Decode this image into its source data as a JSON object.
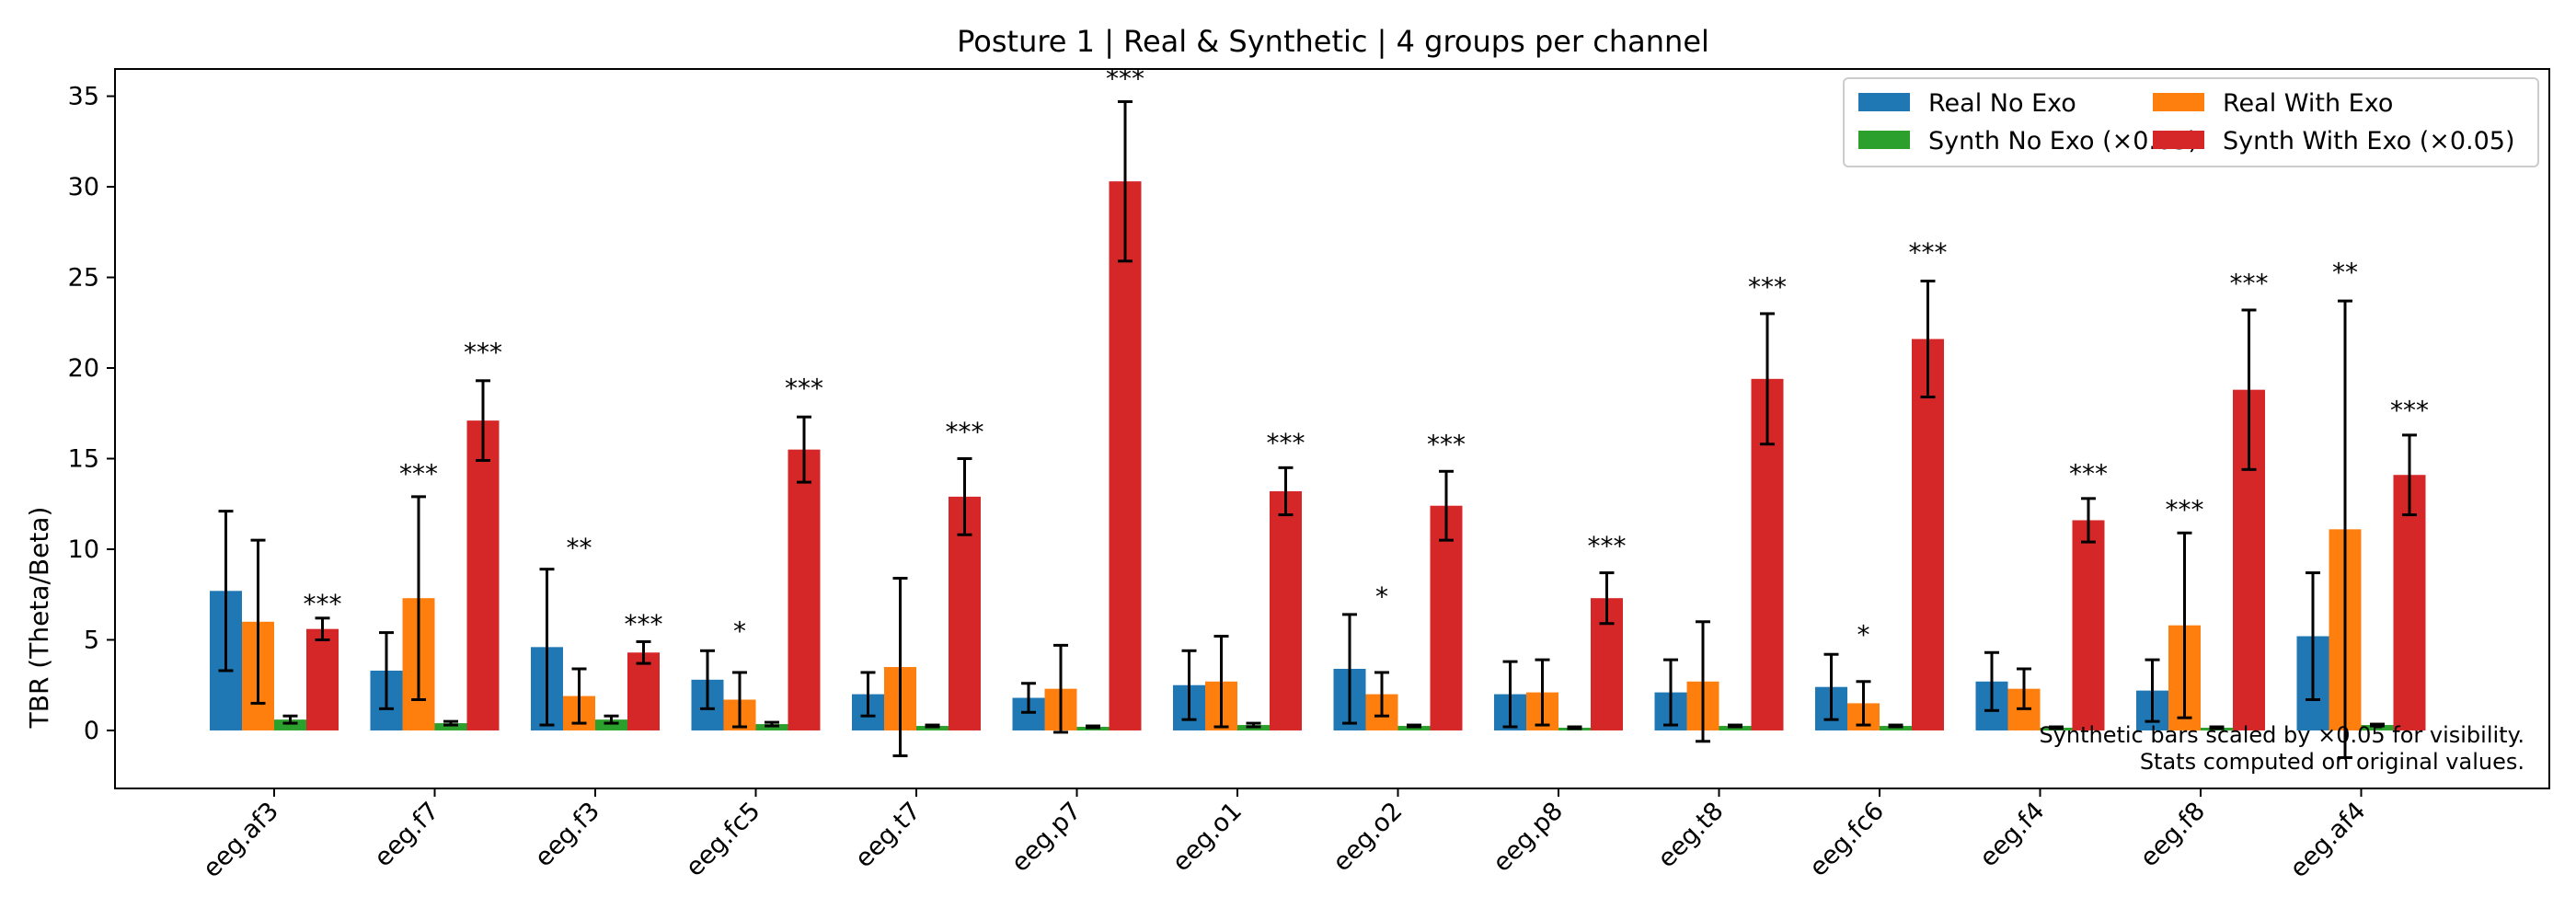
{
  "chart_data": {
    "type": "bar",
    "title": "Posture 1 | Real & Synthetic | 4 groups per channel",
    "xlabel": "",
    "ylabel": "TBR (Theta/Beta)",
    "ylim": [
      -3.2,
      36.5
    ],
    "yticks": [
      0,
      5,
      10,
      15,
      20,
      25,
      30,
      35
    ],
    "grid": false,
    "legend_position": "top-right",
    "categories": [
      "eeg.af3",
      "eeg.f7",
      "eeg.f3",
      "eeg.fc5",
      "eeg.t7",
      "eeg.p7",
      "eeg.o1",
      "eeg.o2",
      "eeg.p8",
      "eeg.t8",
      "eeg.fc6",
      "eeg.f4",
      "eeg.f8",
      "eeg.af4"
    ],
    "series": [
      {
        "name": "Real No Exo",
        "color": "#1f77b4",
        "values": [
          7.7,
          3.3,
          4.6,
          2.8,
          2.0,
          1.8,
          2.5,
          3.4,
          2.0,
          2.1,
          2.4,
          2.7,
          2.2,
          5.2
        ],
        "err": [
          4.4,
          2.1,
          4.3,
          1.6,
          1.2,
          0.8,
          1.9,
          3.0,
          1.8,
          1.8,
          1.8,
          1.6,
          1.7,
          3.5
        ]
      },
      {
        "name": "Real With Exo",
        "color": "#ff7f0e",
        "values": [
          6.0,
          7.3,
          1.9,
          1.7,
          3.5,
          2.3,
          2.7,
          2.0,
          2.1,
          2.7,
          1.5,
          2.3,
          5.8,
          11.1
        ],
        "err": [
          4.5,
          5.6,
          1.5,
          1.5,
          4.9,
          2.4,
          2.5,
          1.2,
          1.8,
          3.3,
          1.2,
          1.1,
          5.1,
          12.6
        ]
      },
      {
        "name": "Synth No Exo (×0.05)",
        "color": "#2ca02c",
        "values": [
          0.6,
          0.4,
          0.6,
          0.35,
          0.25,
          0.2,
          0.3,
          0.25,
          0.15,
          0.25,
          0.25,
          0.15,
          0.15,
          0.3
        ],
        "err": [
          0.2,
          0.1,
          0.2,
          0.1,
          0.05,
          0.05,
          0.1,
          0.05,
          0.05,
          0.05,
          0.05,
          0.05,
          0.05,
          0.05
        ]
      },
      {
        "name": "Synth With Exo (×0.05)",
        "color": "#d62728",
        "values": [
          5.6,
          17.1,
          4.3,
          15.5,
          12.9,
          30.3,
          13.2,
          12.4,
          7.3,
          19.4,
          21.6,
          11.6,
          18.8,
          14.1
        ],
        "err": [
          0.6,
          2.2,
          0.6,
          1.8,
          2.1,
          4.4,
          1.3,
          1.9,
          1.4,
          3.6,
          3.2,
          1.2,
          4.4,
          2.2
        ]
      }
    ],
    "significance": [
      {
        "category": "eeg.af3",
        "label": "***",
        "y": 7.0
      },
      {
        "category": "eeg.f7",
        "label": "***",
        "y": 14.2
      },
      {
        "category": "eeg.f7",
        "label": "***",
        "y": 20.9
      },
      {
        "category": "eeg.f3",
        "label": "**",
        "y": 10.1
      },
      {
        "category": "eeg.f3",
        "label": "***",
        "y": 5.9
      },
      {
        "category": "eeg.fc5",
        "label": "*",
        "y": 5.5
      },
      {
        "category": "eeg.fc5",
        "label": "***",
        "y": 18.9
      },
      {
        "category": "eeg.t7",
        "label": "***",
        "y": 16.5
      },
      {
        "category": "eeg.p7",
        "label": "***",
        "y": 36.0
      },
      {
        "category": "eeg.o1",
        "label": "***",
        "y": 15.9
      },
      {
        "category": "eeg.o2",
        "label": "*",
        "y": 7.4
      },
      {
        "category": "eeg.o2",
        "label": "***",
        "y": 15.8
      },
      {
        "category": "eeg.p8",
        "label": "***",
        "y": 10.2
      },
      {
        "category": "eeg.t8",
        "label": "***",
        "y": 24.5
      },
      {
        "category": "eeg.fc6",
        "label": "*",
        "y": 5.3
      },
      {
        "category": "eeg.fc6",
        "label": "***",
        "y": 26.4
      },
      {
        "category": "eeg.f4",
        "label": "***",
        "y": 14.2
      },
      {
        "category": "eeg.f8",
        "label": "***",
        "y": 12.2
      },
      {
        "category": "eeg.f8",
        "label": "***",
        "y": 24.7
      },
      {
        "category": "eeg.af4",
        "label": "**",
        "y": 25.3
      },
      {
        "category": "eeg.af4",
        "label": "***",
        "y": 17.7
      }
    ],
    "annotations": [
      "Synthetic bars scaled by ×0.05 for visibility.",
      "Stats computed on original values."
    ]
  }
}
